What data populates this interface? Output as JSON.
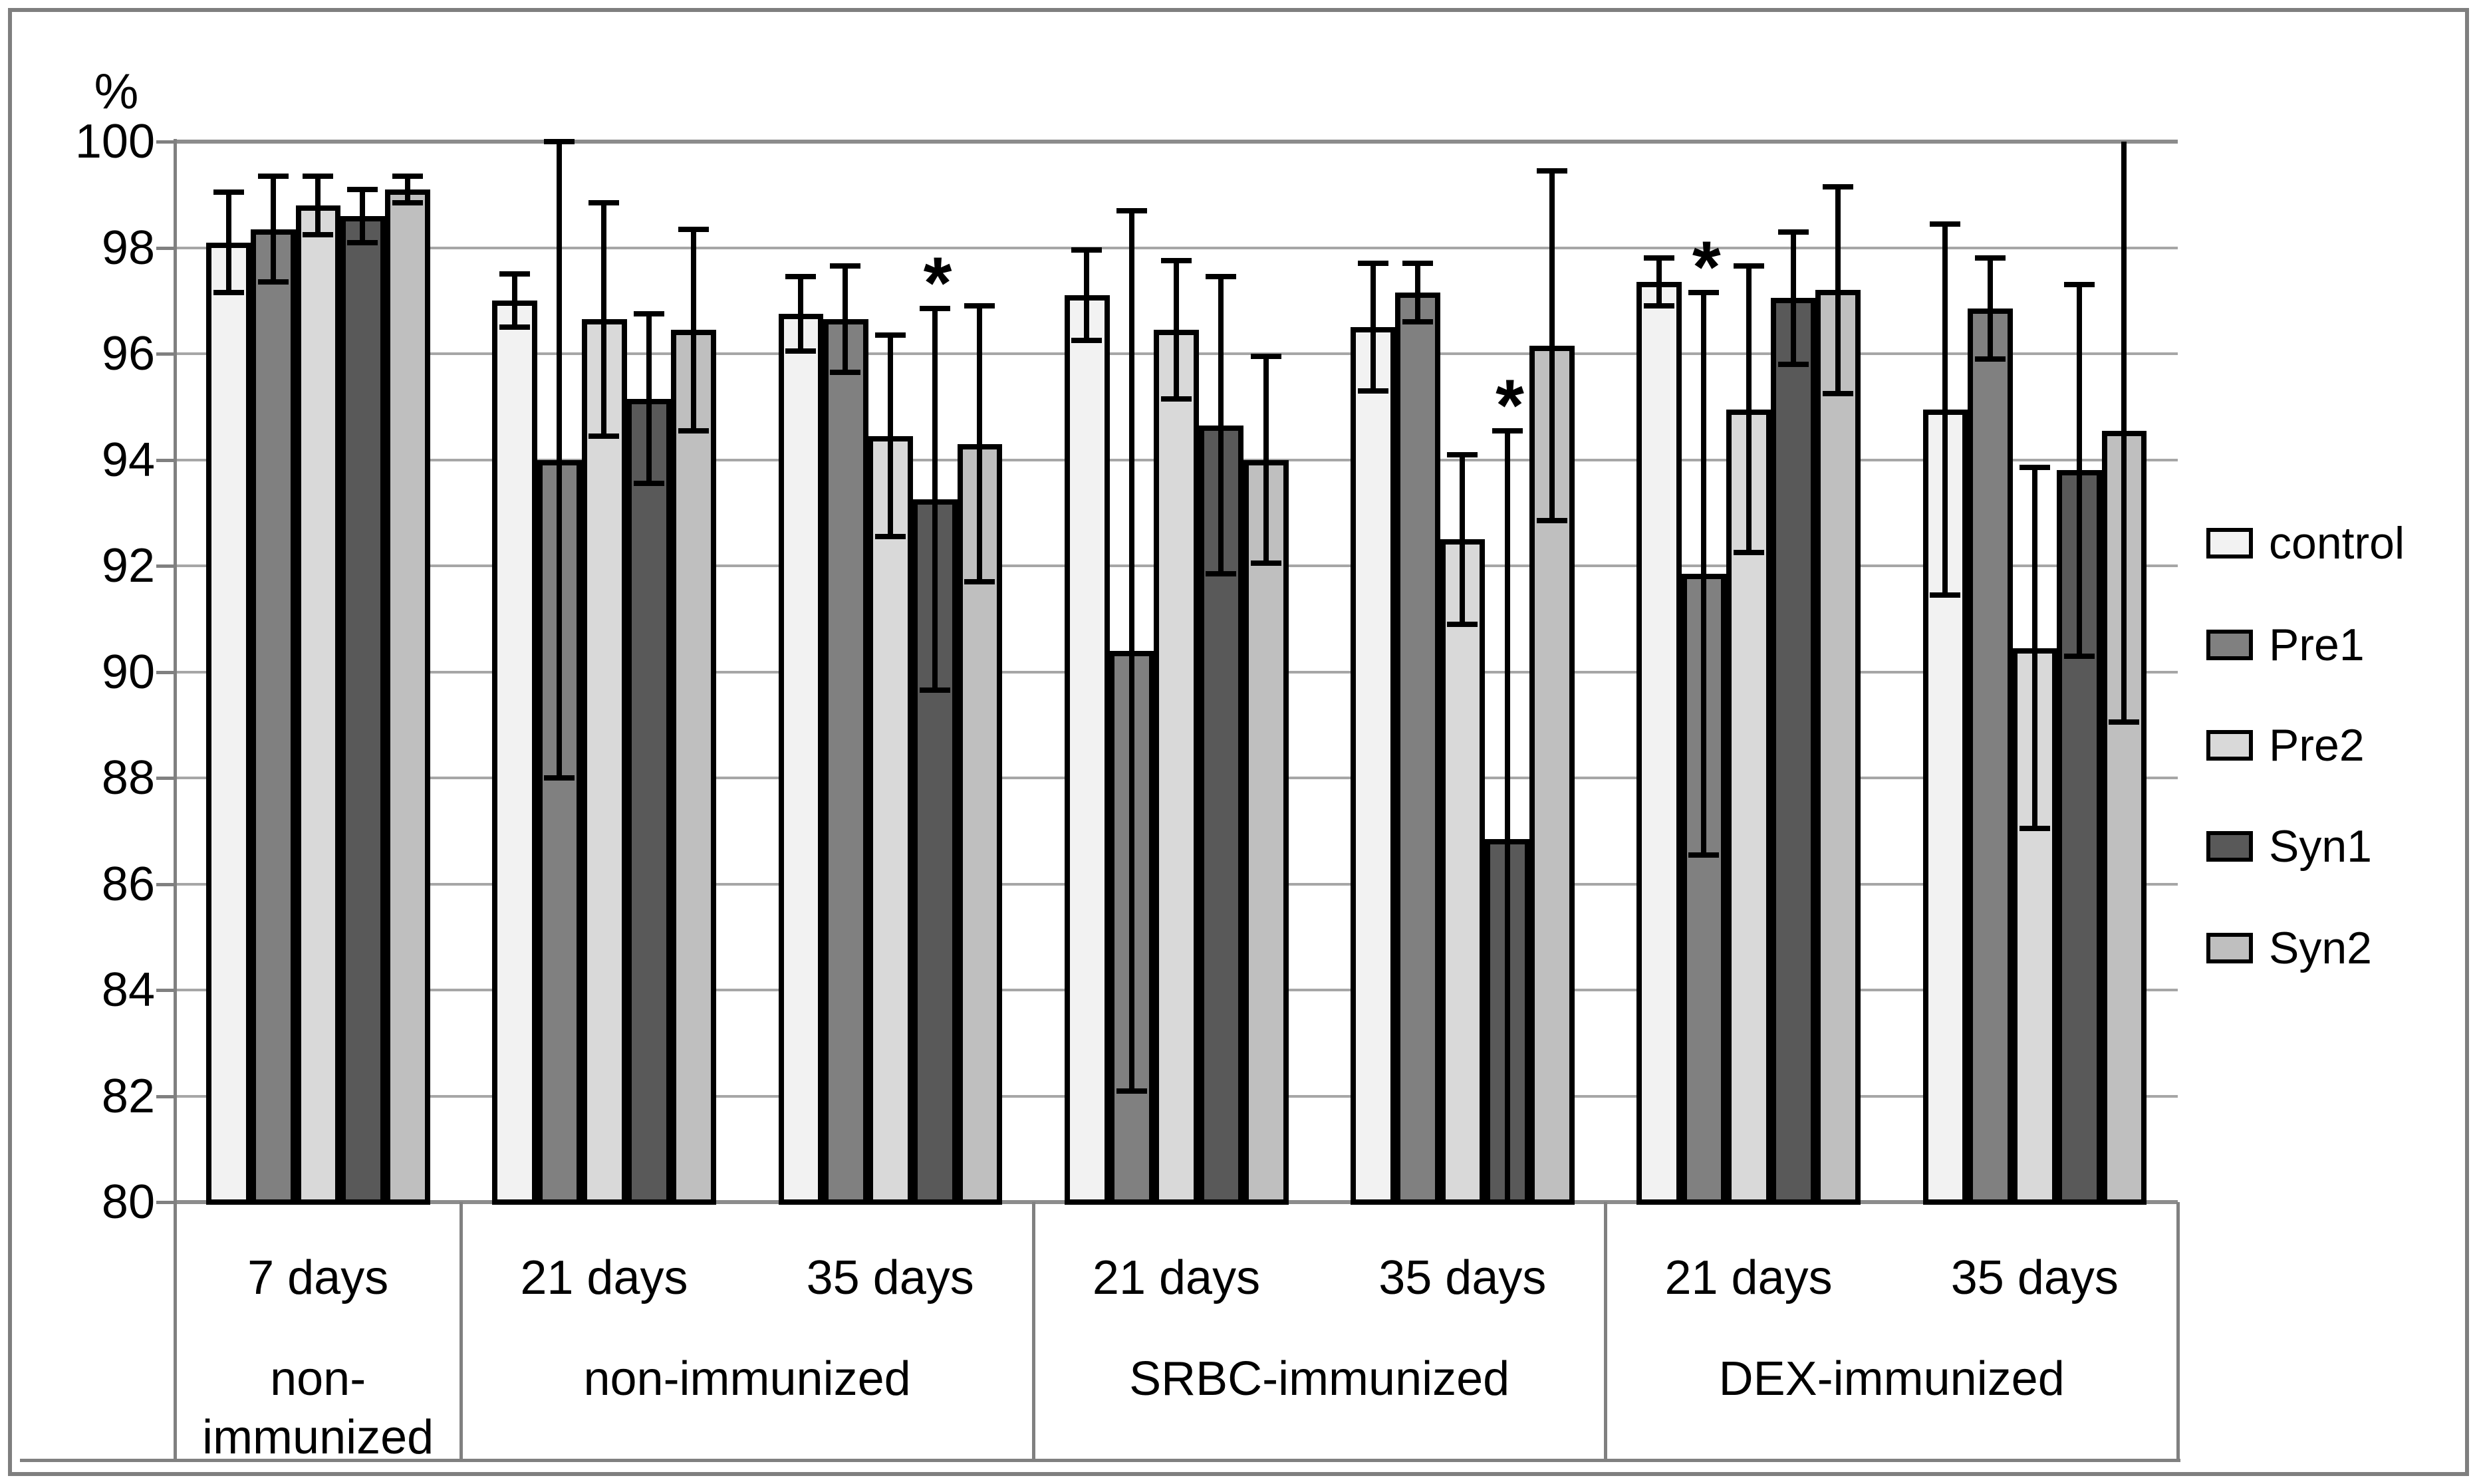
{
  "figure": {
    "y_axis_unit_label": "%",
    "significance_marker": "*"
  },
  "chart_data": {
    "type": "bar",
    "title": "",
    "xlabel": "",
    "ylabel": "%",
    "ylim": [
      80,
      100
    ],
    "ytick_step": 2,
    "ytick_labels": [
      "100",
      "98",
      "96",
      "94",
      "92",
      "90",
      "88",
      "86",
      "84",
      "82",
      "80"
    ],
    "grid": true,
    "legend_position": "right",
    "error_bars": true,
    "colors": {
      "grid_line": "#a6a6a6",
      "axis_line": "#808080",
      "bar_outline": "#000000"
    },
    "series": [
      {
        "name": "control",
        "color": "#f2f2f2",
        "values": [
          98.1,
          97.0,
          96.75,
          97.1,
          96.5,
          97.35,
          94.95
        ],
        "errors": [
          0.95,
          0.5,
          0.7,
          0.85,
          1.2,
          0.45,
          3.5
        ]
      },
      {
        "name": "Pre1",
        "color": "#808080",
        "values": [
          98.35,
          94.0,
          96.65,
          90.4,
          97.15,
          91.85,
          96.85
        ],
        "errors": [
          1.0,
          6.0,
          1.0,
          8.3,
          0.55,
          5.3,
          0.95
        ]
      },
      {
        "name": "Pre2",
        "color": "#d9d9d9",
        "values": [
          98.8,
          96.65,
          94.45,
          96.45,
          92.5,
          94.95,
          90.45
        ],
        "errors": [
          0.55,
          2.2,
          1.9,
          1.3,
          1.6,
          2.7,
          3.4
        ]
      },
      {
        "name": "Syn1",
        "color": "#595959",
        "values": [
          98.6,
          95.15,
          93.25,
          94.65,
          86.85,
          97.05,
          93.8
        ],
        "errors": [
          0.5,
          1.6,
          3.6,
          2.8,
          7.7,
          1.25,
          3.5
        ]
      },
      {
        "name": "Syn2",
        "color": "#bfbfbf",
        "values": [
          99.1,
          96.45,
          94.3,
          94.0,
          96.15,
          97.2,
          94.55
        ],
        "errors": [
          0.25,
          1.9,
          2.6,
          1.95,
          3.3,
          1.95,
          5.5
        ]
      }
    ],
    "x_axis": {
      "day_labels": [
        "7 days",
        "21 days",
        "35 days",
        "21 days",
        "35 days",
        "21 days",
        "35 days"
      ],
      "blocks": [
        {
          "label_lines": [
            "non-",
            "immunized"
          ],
          "group_span": [
            0,
            0
          ]
        },
        {
          "label_lines": [
            "non-immunized"
          ],
          "group_span": [
            1,
            2
          ]
        },
        {
          "label_lines": [
            "SRBC-immunized"
          ],
          "group_span": [
            3,
            4
          ]
        },
        {
          "label_lines": [
            "DEX-immunized"
          ],
          "group_span": [
            5,
            6
          ]
        }
      ]
    },
    "significance": [
      {
        "group_index": 2,
        "series": "Syn1",
        "marker": "*"
      },
      {
        "group_index": 4,
        "series": "Syn1",
        "marker": "*"
      },
      {
        "group_index": 5,
        "series": "Pre1",
        "marker": "*"
      }
    ],
    "legend_entries": [
      "control",
      "Pre1",
      "Pre2",
      "Syn1",
      "Syn2"
    ]
  }
}
